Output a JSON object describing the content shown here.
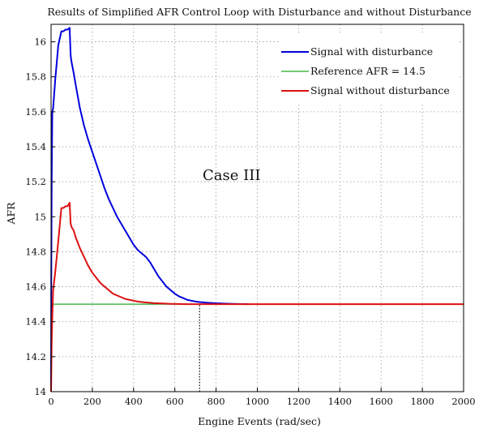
{
  "chart_data": {
    "type": "line",
    "title": "Results of Simplified AFR Control Loop with Disturbance and without Disturbance",
    "xlabel": "Engine Events (rad/sec)",
    "ylabel": "AFR",
    "xlim": [
      0,
      2000
    ],
    "ylim": [
      14,
      16.1
    ],
    "xticks": [
      0,
      200,
      400,
      600,
      800,
      1000,
      1200,
      1400,
      1600,
      1800,
      2000
    ],
    "yticks": [
      14,
      14.2,
      14.4,
      14.6,
      14.8,
      15,
      15.2,
      15.4,
      15.6,
      15.8,
      16
    ],
    "ytick_labels": [
      "14",
      "14.2",
      "14.4",
      "14.6",
      "14.8",
      "15",
      "15.2",
      "15.4",
      "15.6",
      "15.8",
      "16"
    ],
    "grid": true,
    "legend_position": "top-right",
    "annotation": "Case III",
    "series": [
      {
        "name": "Signal with disturbance",
        "color": "#0000dd",
        "x": [
          0,
          1,
          3,
          6,
          10,
          20,
          35,
          50,
          60,
          70,
          80,
          90,
          95,
          100,
          110,
          120,
          140,
          160,
          180,
          200,
          220,
          240,
          260,
          280,
          300,
          320,
          340,
          360,
          380,
          400,
          420,
          440,
          460,
          480,
          490,
          500,
          520,
          540,
          560,
          580,
          600,
          620,
          640,
          660,
          680,
          700,
          720,
          760,
          800,
          850,
          900,
          960
        ],
        "values": [
          14.0,
          14.62,
          15.2,
          15.6,
          15.62,
          15.78,
          15.98,
          16.06,
          16.06,
          16.07,
          16.07,
          16.08,
          15.92,
          15.88,
          15.82,
          15.75,
          15.62,
          15.52,
          15.44,
          15.37,
          15.3,
          15.23,
          15.16,
          15.1,
          15.05,
          15.0,
          14.96,
          14.92,
          14.88,
          14.84,
          14.81,
          14.79,
          14.77,
          14.74,
          14.72,
          14.7,
          14.66,
          14.63,
          14.6,
          14.58,
          14.56,
          14.545,
          14.535,
          14.525,
          14.52,
          14.515,
          14.512,
          14.508,
          14.505,
          14.503,
          14.501,
          14.5
        ]
      },
      {
        "name": "Reference AFR = 14.5",
        "color": "#22aa22",
        "x": [
          0,
          2000
        ],
        "values": [
          14.5,
          14.5
        ]
      },
      {
        "name": "Signal without disturbance",
        "color": "#dd1111",
        "x": [
          0,
          3,
          6,
          10,
          20,
          35,
          50,
          60,
          70,
          80,
          90,
          95,
          100,
          110,
          120,
          140,
          160,
          180,
          200,
          220,
          240,
          260,
          280,
          300,
          320,
          340,
          360,
          380,
          400,
          420,
          440,
          460,
          480,
          500,
          540,
          580,
          620,
          660,
          700,
          760,
          820,
          900,
          1000,
          1200,
          1500,
          2000
        ],
        "values": [
          14.0,
          14.28,
          14.42,
          14.58,
          14.68,
          14.86,
          15.05,
          15.05,
          15.06,
          15.06,
          15.08,
          14.96,
          14.94,
          14.92,
          14.88,
          14.82,
          14.77,
          14.72,
          14.68,
          14.65,
          14.62,
          14.6,
          14.58,
          14.56,
          14.55,
          14.54,
          14.53,
          14.525,
          14.52,
          14.515,
          14.512,
          14.51,
          14.508,
          14.506,
          14.504,
          14.502,
          14.501,
          14.5,
          14.5,
          14.5,
          14.5,
          14.5,
          14.5,
          14.5,
          14.5,
          14.5
        ]
      }
    ],
    "marker_line": {
      "x": 720,
      "y_from": 14,
      "y_to": 14.5,
      "color": "#000000"
    }
  }
}
